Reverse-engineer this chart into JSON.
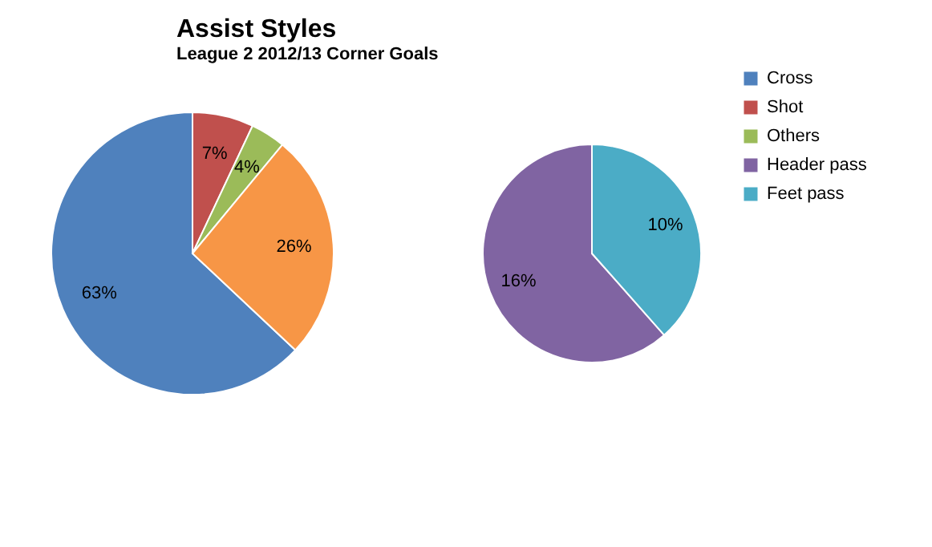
{
  "chart_data": [
    {
      "type": "pie",
      "title": "Assist Styles",
      "subtitle": "League 2 2012/13 Corner Goals",
      "categories": [
        "Cross",
        "Shot",
        "Others",
        null
      ],
      "values": [
        63,
        7,
        4,
        26
      ],
      "colors": [
        "#4f81bd",
        "#c0504d",
        "#9bbb59",
        "#f79646"
      ],
      "value_labels": [
        "63%",
        "7%",
        "4%",
        "26%"
      ],
      "legend": "right"
    },
    {
      "type": "pie",
      "categories": [
        "Header pass",
        "Feet pass"
      ],
      "values": [
        16,
        10
      ],
      "colors": [
        "#8064a2",
        "#4bacc6"
      ],
      "value_labels": [
        "16%",
        "10%"
      ],
      "legend": "right"
    }
  ]
}
